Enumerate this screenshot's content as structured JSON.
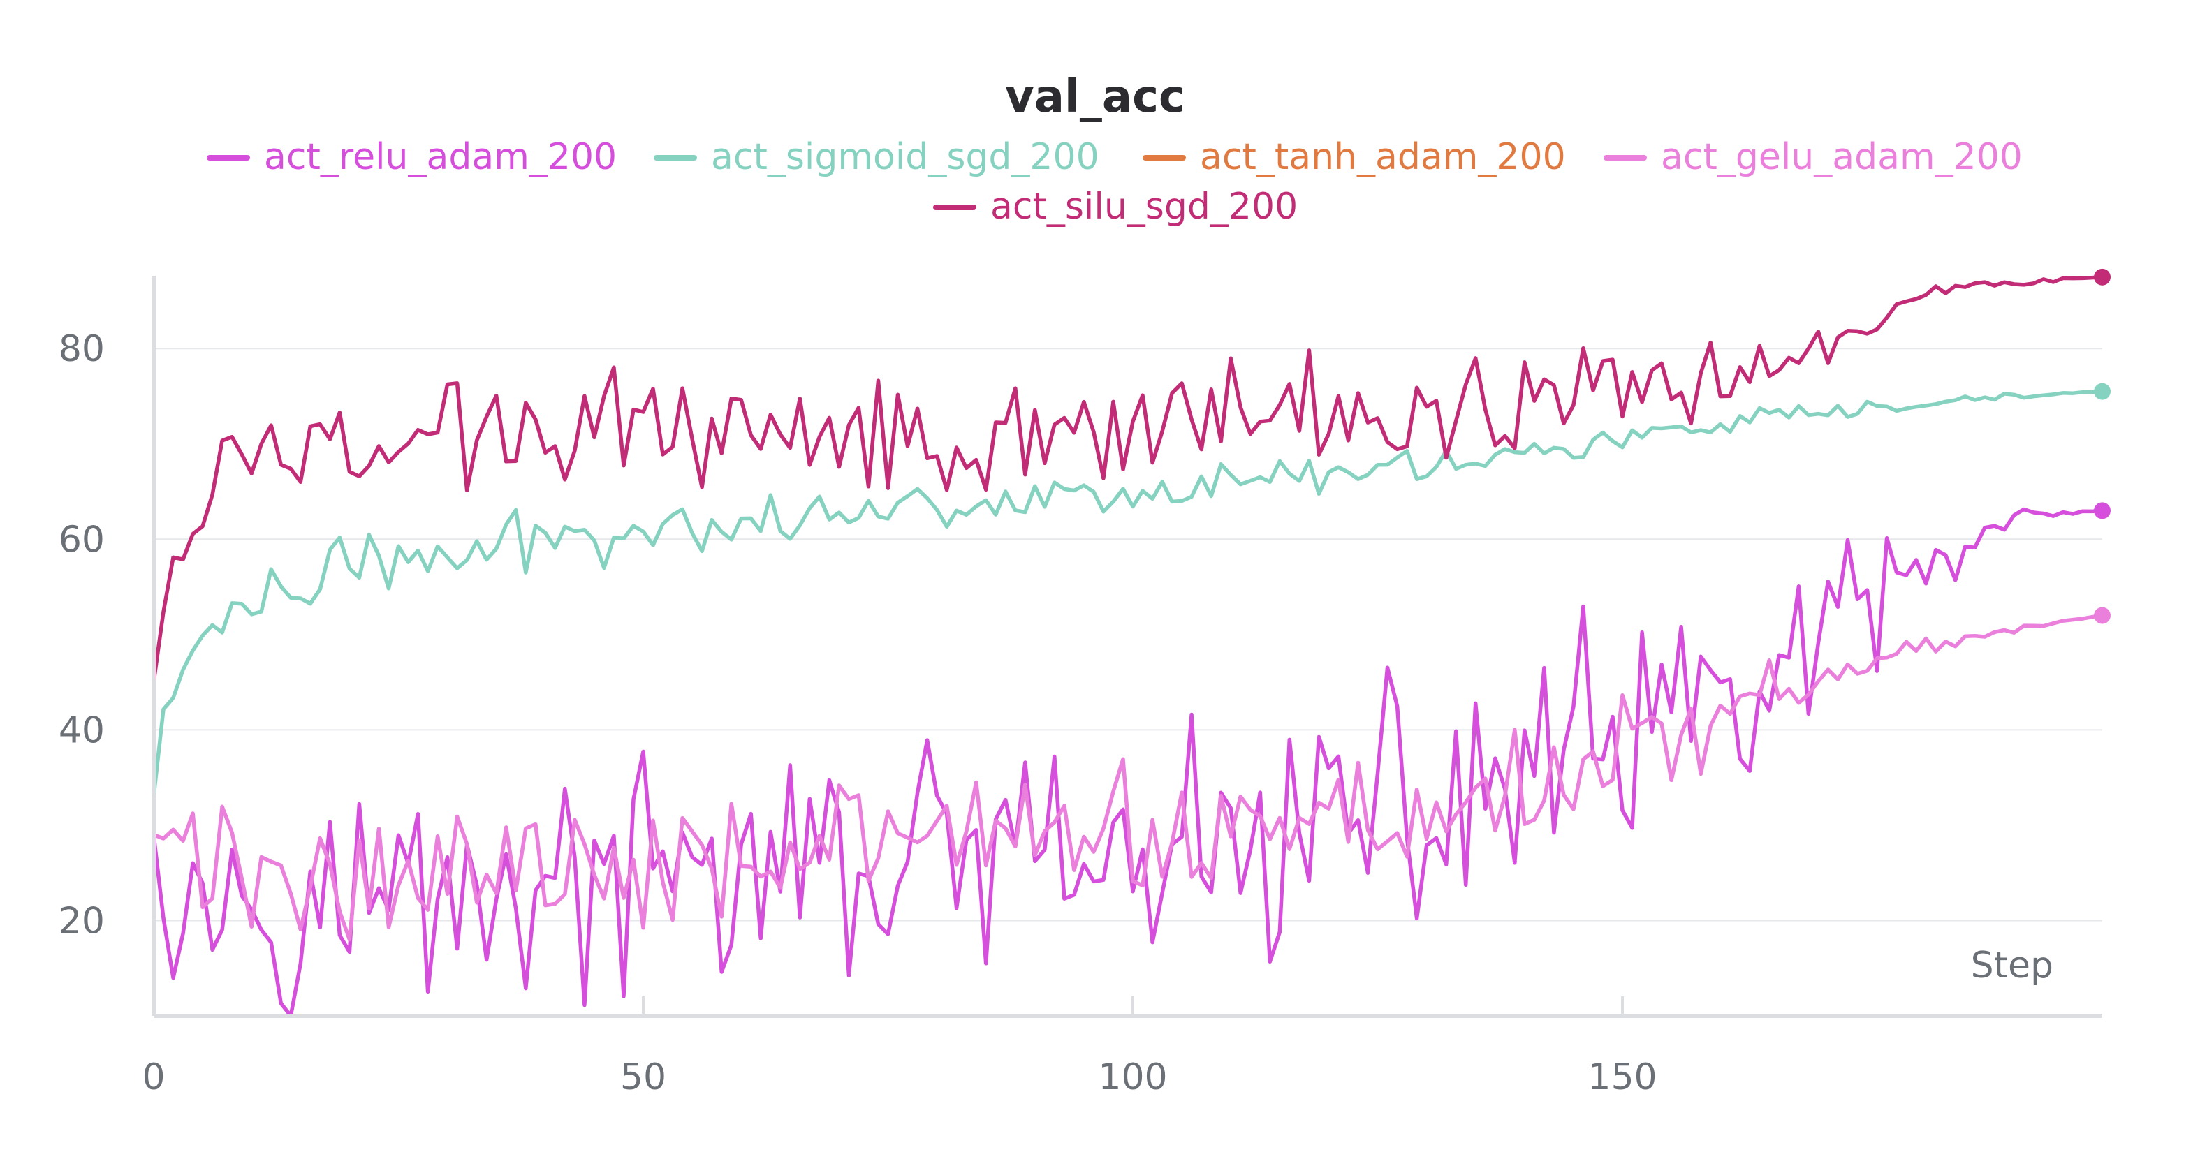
{
  "chart_data": {
    "type": "line",
    "title": "val_acc",
    "xlabel": "Step",
    "ylabel": "",
    "xlim": [
      0,
      199
    ],
    "ylim": [
      10,
      88
    ],
    "x_ticks": [
      0,
      50,
      100,
      150
    ],
    "y_ticks": [
      20,
      40,
      60,
      80
    ],
    "grid": "horizontal",
    "legend_position": "top-center",
    "series": [
      {
        "name": "act_relu_adam_200",
        "color": "#d64fdc",
        "shape": "noisy",
        "points": [
          [
            0,
            29
          ],
          [
            5,
            22
          ],
          [
            10,
            24
          ],
          [
            20,
            22
          ],
          [
            30,
            24
          ],
          [
            40,
            23
          ],
          [
            50,
            24
          ],
          [
            60,
            25
          ],
          [
            70,
            25
          ],
          [
            80,
            26
          ],
          [
            90,
            26
          ],
          [
            100,
            24
          ],
          [
            110,
            28
          ],
          [
            120,
            30
          ],
          [
            130,
            31
          ],
          [
            140,
            36
          ],
          [
            150,
            38
          ],
          [
            160,
            42
          ],
          [
            170,
            48
          ],
          [
            175,
            52
          ],
          [
            180,
            56
          ],
          [
            185,
            59
          ],
          [
            190,
            62
          ],
          [
            199,
            63
          ]
        ],
        "noise": [
          [
            0,
            9
          ],
          [
            50,
            9
          ],
          [
            100,
            10
          ],
          [
            140,
            11
          ],
          [
            160,
            10
          ],
          [
            175,
            6
          ],
          [
            185,
            3
          ],
          [
            190,
            1
          ],
          [
            199,
            0
          ]
        ]
      },
      {
        "name": "act_sigmoid_sgd_200",
        "color": "#86d2c0",
        "shape": "noisy",
        "points": [
          [
            0,
            33
          ],
          [
            1,
            42
          ],
          [
            3,
            46
          ],
          [
            5,
            50
          ],
          [
            8,
            52
          ],
          [
            12,
            54
          ],
          [
            20,
            57
          ],
          [
            30,
            58
          ],
          [
            40,
            60
          ],
          [
            50,
            61
          ],
          [
            60,
            62
          ],
          [
            70,
            63
          ],
          [
            80,
            63.5
          ],
          [
            90,
            64.5
          ],
          [
            100,
            65
          ],
          [
            110,
            66
          ],
          [
            120,
            67
          ],
          [
            130,
            68
          ],
          [
            140,
            69
          ],
          [
            150,
            70.5
          ],
          [
            160,
            72
          ],
          [
            170,
            73
          ],
          [
            180,
            74
          ],
          [
            190,
            75
          ],
          [
            199,
            75.5
          ]
        ],
        "noise": [
          [
            0,
            0
          ],
          [
            5,
            2
          ],
          [
            20,
            3
          ],
          [
            40,
            2.5
          ],
          [
            80,
            1.5
          ],
          [
            120,
            1.5
          ],
          [
            160,
            1
          ],
          [
            199,
            0
          ]
        ]
      },
      {
        "name": "act_tanh_adam_200",
        "color": "#e07a40",
        "shape": "none",
        "points": []
      },
      {
        "name": "act_gelu_adam_200",
        "color": "#ea7fdc",
        "shape": "noisy",
        "points": [
          [
            0,
            29
          ],
          [
            10,
            24
          ],
          [
            20,
            25
          ],
          [
            40,
            26
          ],
          [
            60,
            28
          ],
          [
            80,
            28
          ],
          [
            100,
            29
          ],
          [
            110,
            29
          ],
          [
            120,
            31
          ],
          [
            130,
            31
          ],
          [
            140,
            35
          ],
          [
            150,
            37
          ],
          [
            160,
            41
          ],
          [
            170,
            46
          ],
          [
            175,
            47
          ],
          [
            180,
            48.5
          ],
          [
            185,
            49.5
          ],
          [
            190,
            50.5
          ],
          [
            199,
            52
          ]
        ],
        "noise": [
          [
            0,
            5
          ],
          [
            50,
            6
          ],
          [
            100,
            5
          ],
          [
            150,
            5
          ],
          [
            165,
            3
          ],
          [
            175,
            1
          ],
          [
            185,
            0.5
          ],
          [
            199,
            0
          ]
        ]
      },
      {
        "name": "act_silu_sgd_200",
        "color": "#c22c76",
        "shape": "noisy",
        "points": [
          [
            0,
            45
          ],
          [
            1,
            53
          ],
          [
            2,
            58
          ],
          [
            4,
            62
          ],
          [
            8,
            67
          ],
          [
            20,
            70
          ],
          [
            30,
            71
          ],
          [
            40,
            72
          ],
          [
            50,
            72
          ],
          [
            60,
            72
          ],
          [
            80,
            71.5
          ],
          [
            100,
            72
          ],
          [
            120,
            73
          ],
          [
            130,
            74
          ],
          [
            140,
            75
          ],
          [
            150,
            77
          ],
          [
            160,
            78
          ],
          [
            170,
            80
          ],
          [
            175,
            83
          ],
          [
            180,
            86
          ],
          [
            190,
            87
          ],
          [
            199,
            87.5
          ]
        ],
        "noise": [
          [
            0,
            0
          ],
          [
            5,
            4
          ],
          [
            20,
            4
          ],
          [
            50,
            4.5
          ],
          [
            100,
            5
          ],
          [
            150,
            5
          ],
          [
            160,
            3
          ],
          [
            172,
            2
          ],
          [
            178,
            1
          ],
          [
            185,
            0.5
          ],
          [
            199,
            0
          ]
        ]
      }
    ]
  }
}
